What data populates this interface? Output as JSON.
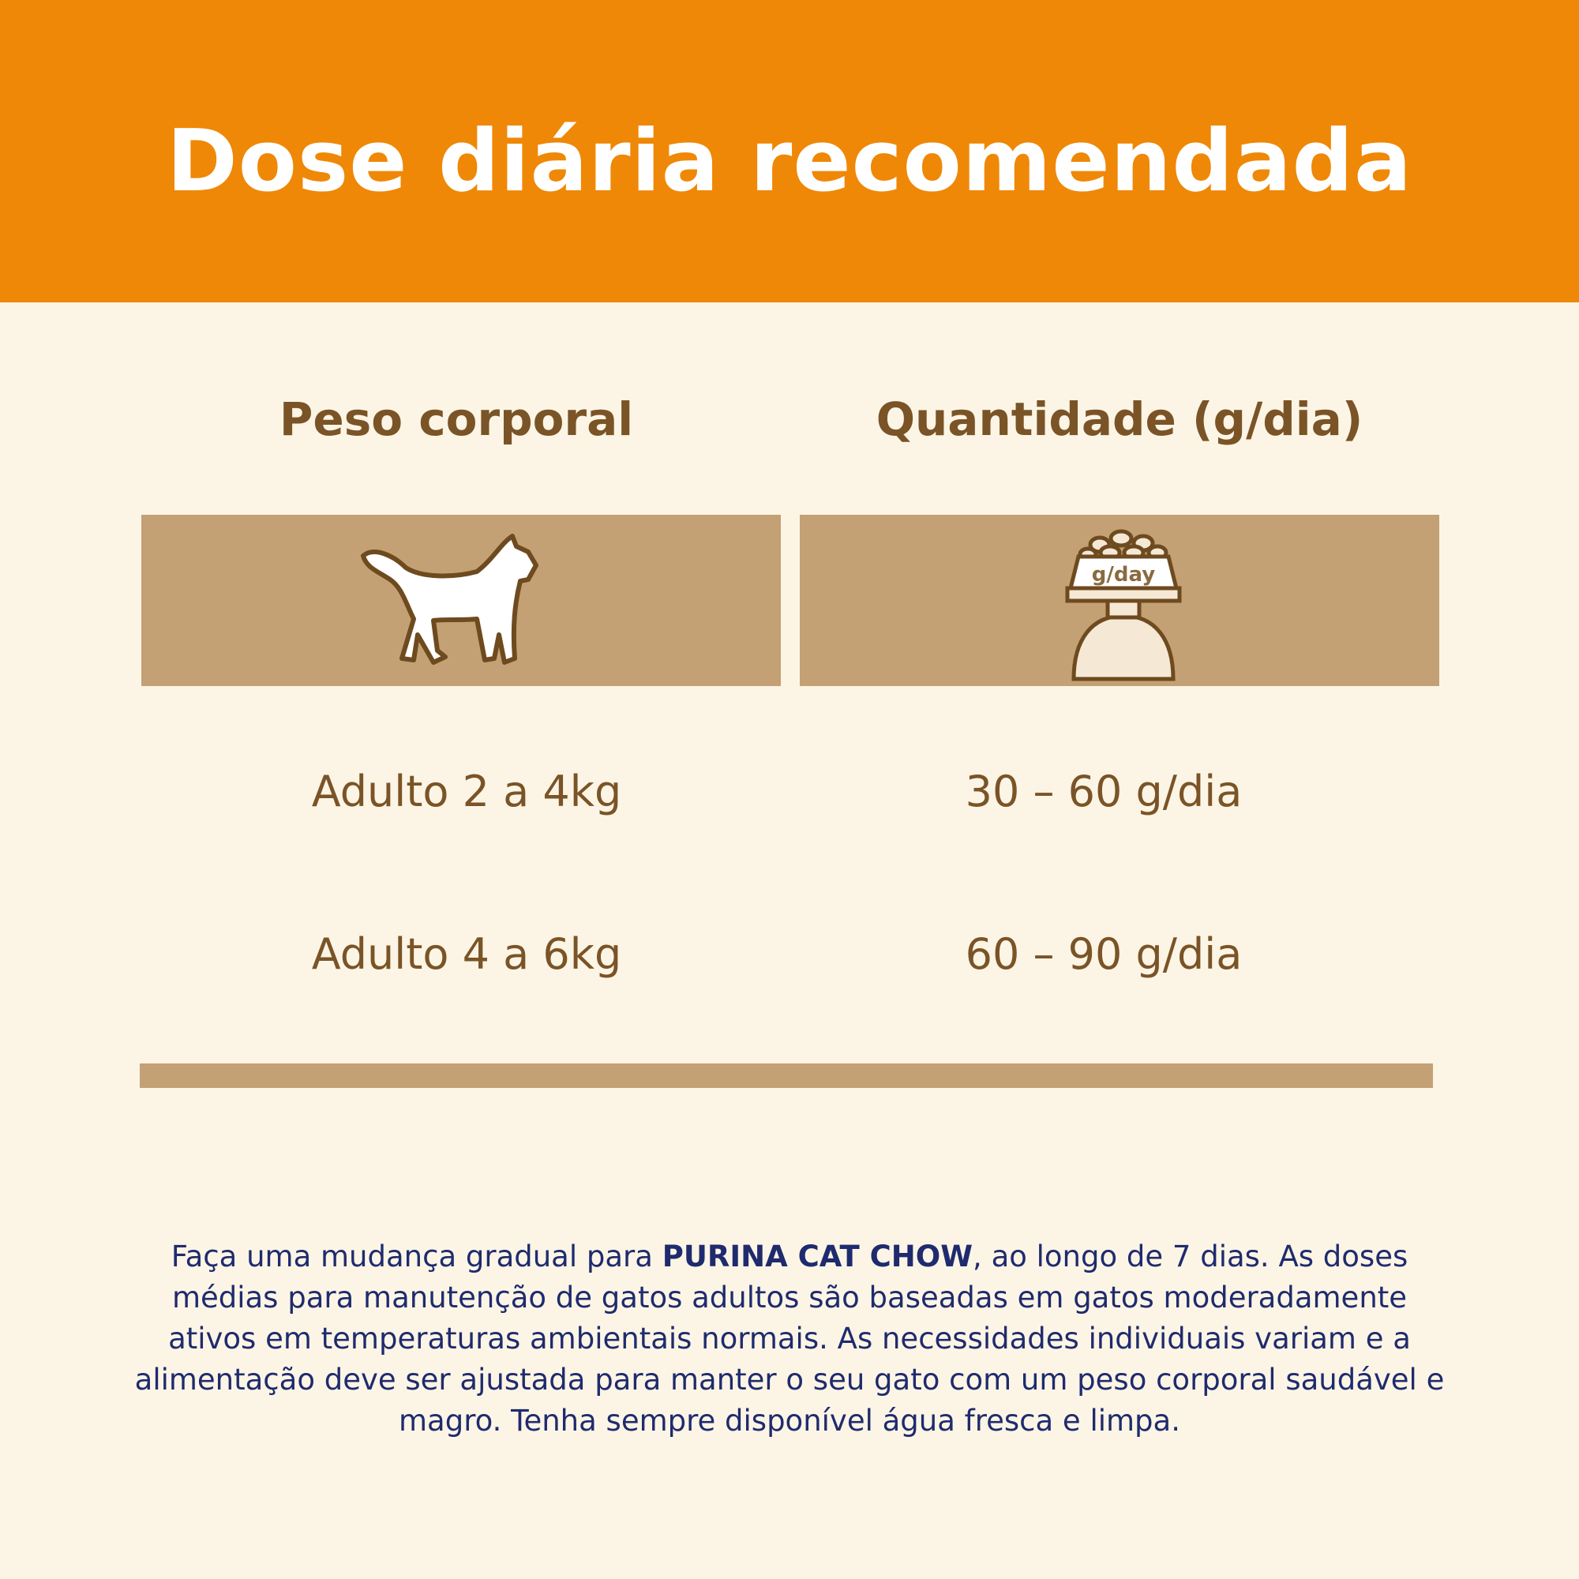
{
  "header": {
    "title": "Dose diária recomendada"
  },
  "columns": [
    {
      "label": "Peso corporal",
      "icon": "cat-icon"
    },
    {
      "label": "Quantidade (g/dia)",
      "icon": "food-bowl-scale-icon",
      "icon_text": "g/day"
    }
  ],
  "rows": [
    {
      "weight": "Adulto 2 a 4kg",
      "amount": "30 – 60 g/dia"
    },
    {
      "weight": "Adulto 4 a 6kg",
      "amount": "60 – 90 g/dia"
    }
  ],
  "note": {
    "before": "Faça uma mudança gradual para ",
    "brand": "PURINA CAT CHOW",
    "after": ", ao longo de 7 dias. As doses médias para manutenção de gatos adultos são baseadas em gatos moderadamente ativos em temperaturas ambientais normais. As necessidades individuais variam e a alimentação deve ser ajustada para manter o seu gato com um peso corporal saudável e magro. Tenha sempre disponível água fresca e limpa."
  },
  "colors": {
    "header": "#ef8806",
    "background": "#fcf5e5",
    "tan": "#c4a075",
    "brown": "#7a5427",
    "navy": "#1f2b6e"
  }
}
